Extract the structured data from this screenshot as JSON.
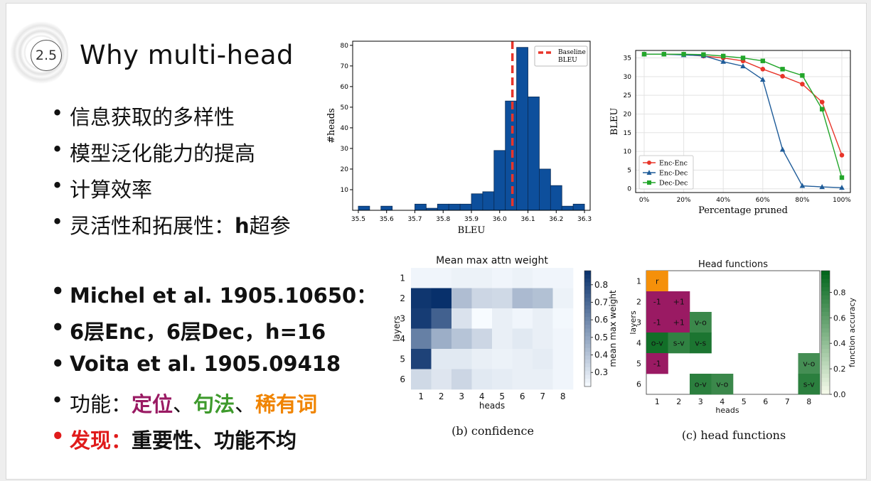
{
  "slide": {
    "section_number": "2.5",
    "title": "Why multi-head",
    "bullets_top": [
      "信息获取的多样性",
      "模型泛化能力的提高",
      "计算效率"
    ],
    "bullet_flex_prefix": "灵活性和拓展性：",
    "bullet_flex_bold": "h",
    "bullet_flex_suffix": "超参",
    "bullets_bottom": {
      "michel": "Michel et al. 1905.10650：",
      "config": "6层Enc，6层Dec，h=16",
      "voita": "Voita et al. 1905.09418",
      "func_prefix": "功能：",
      "func_positional": "定位",
      "func_sep1": "、",
      "func_syntactic": "句法",
      "func_sep2": "、",
      "func_rare": "稀有词",
      "finding_label": "发现：",
      "finding_text": "重要性、功能不均"
    }
  },
  "chart_data": [
    {
      "type": "bar",
      "xlabel": "BLEU",
      "ylabel": "#heads",
      "xlim": [
        35.48,
        36.32
      ],
      "ylim": [
        0,
        82
      ],
      "xticks": [
        "35.5",
        "35.6",
        "35.7",
        "35.8",
        "35.9",
        "36.0",
        "36.1",
        "36.2",
        "36.3"
      ],
      "yticks": [
        "10",
        "20",
        "30",
        "40",
        "50",
        "60",
        "70",
        "80"
      ],
      "bin_width": 0.04,
      "bins": [
        {
          "x": 35.52,
          "count": 2
        },
        {
          "x": 35.6,
          "count": 2
        },
        {
          "x": 35.72,
          "count": 3
        },
        {
          "x": 35.76,
          "count": 1
        },
        {
          "x": 35.8,
          "count": 3
        },
        {
          "x": 35.84,
          "count": 3
        },
        {
          "x": 35.88,
          "count": 3
        },
        {
          "x": 35.92,
          "count": 8
        },
        {
          "x": 35.96,
          "count": 9
        },
        {
          "x": 36.0,
          "count": 29
        },
        {
          "x": 36.04,
          "count": 53
        },
        {
          "x": 36.08,
          "count": 79
        },
        {
          "x": 36.12,
          "count": 55
        },
        {
          "x": 36.16,
          "count": 20
        },
        {
          "x": 36.2,
          "count": 12
        },
        {
          "x": 36.24,
          "count": 2
        },
        {
          "x": 36.28,
          "count": 3
        }
      ],
      "baseline": 36.045,
      "legend": {
        "label_line1": "Baseline",
        "label_line2": "BLEU",
        "position": "top-right"
      },
      "colors": {
        "bar": "#0d4f9c",
        "baseline": "#e8352a"
      }
    },
    {
      "type": "line",
      "xlabel": "Percentage pruned",
      "ylabel": "BLEU",
      "x": [
        0,
        10,
        20,
        30,
        40,
        50,
        60,
        70,
        80,
        90,
        100
      ],
      "xticks": [
        "0%",
        "20%",
        "40%",
        "60%",
        "80%",
        "100%"
      ],
      "yticks": [
        "0",
        "5",
        "10",
        "15",
        "20",
        "25",
        "30",
        "35"
      ],
      "ylim": [
        -1,
        37
      ],
      "grid": true,
      "legend_position": "bottom-left",
      "series": [
        {
          "name": "Enc-Enc",
          "marker": "circle",
          "color": "#e8352a",
          "values": [
            36.0,
            36.0,
            35.9,
            35.5,
            35.0,
            34.2,
            32.0,
            30.1,
            28.0,
            23.2,
            9.0
          ]
        },
        {
          "name": "Enc-Dec",
          "marker": "triangle",
          "color": "#1f5c99",
          "values": [
            36.0,
            36.0,
            35.8,
            35.6,
            34.0,
            32.8,
            29.2,
            10.5,
            0.8,
            0.5,
            0.3
          ]
        },
        {
          "name": "Dec-Dec",
          "marker": "square",
          "color": "#22a62a",
          "values": [
            36.0,
            36.0,
            36.0,
            35.9,
            35.5,
            35.0,
            34.2,
            32.0,
            30.3,
            21.3,
            3.0
          ]
        }
      ]
    },
    {
      "type": "heatmap",
      "title": "Mean max attn weight",
      "xlabel": "heads",
      "ylabel": "layers",
      "x": [
        "1",
        "2",
        "3",
        "4",
        "5",
        "6",
        "7",
        "8"
      ],
      "y": [
        "1",
        "2",
        "3",
        "4",
        "5",
        "6"
      ],
      "values": [
        [
          0.24,
          0.24,
          0.25,
          0.25,
          0.24,
          0.25,
          0.24,
          0.24
        ],
        [
          0.86,
          0.88,
          0.42,
          0.34,
          0.33,
          0.43,
          0.41,
          0.25
        ],
        [
          0.84,
          0.72,
          0.3,
          0.2,
          0.26,
          0.24,
          0.26,
          0.23
        ],
        [
          0.62,
          0.47,
          0.4,
          0.34,
          0.26,
          0.28,
          0.26,
          0.24
        ],
        [
          0.82,
          0.28,
          0.28,
          0.26,
          0.25,
          0.26,
          0.27,
          0.24
        ],
        [
          0.33,
          0.29,
          0.34,
          0.28,
          0.27,
          0.26,
          0.26,
          0.24
        ]
      ],
      "colorbar": {
        "label": "mean max weight",
        "ticks": [
          "0.3",
          "0.4",
          "0.5",
          "0.6",
          "0.7",
          "0.8"
        ],
        "range": [
          0.22,
          0.88
        ]
      },
      "caption": "(b) confidence"
    },
    {
      "type": "heatmap",
      "title": "Head functions",
      "xlabel": "heads",
      "ylabel": "layers",
      "x": [
        "1",
        "2",
        "3",
        "4",
        "5",
        "6",
        "7",
        "8"
      ],
      "y": [
        "1",
        "2",
        "3",
        "4",
        "5",
        "6"
      ],
      "cells": [
        {
          "layer": 1,
          "head": 1,
          "label": "r",
          "kind": "rare"
        },
        {
          "layer": 2,
          "head": 1,
          "label": "-1",
          "kind": "positional"
        },
        {
          "layer": 2,
          "head": 2,
          "label": "+1",
          "kind": "positional"
        },
        {
          "layer": 3,
          "head": 1,
          "label": "-1",
          "kind": "positional"
        },
        {
          "layer": 3,
          "head": 2,
          "label": "+1",
          "kind": "positional"
        },
        {
          "layer": 3,
          "head": 3,
          "label": "v-o",
          "kind": "syntactic",
          "accuracy": 0.74
        },
        {
          "layer": 4,
          "head": 1,
          "label": "o-v",
          "kind": "syntactic",
          "accuracy": 0.9
        },
        {
          "layer": 4,
          "head": 2,
          "label": "s-v",
          "kind": "syntactic",
          "accuracy": 0.78
        },
        {
          "layer": 4,
          "head": 3,
          "label": "v-s",
          "kind": "syntactic",
          "accuracy": 0.86
        },
        {
          "layer": 5,
          "head": 1,
          "label": "-1",
          "kind": "positional"
        },
        {
          "layer": 5,
          "head": 8,
          "label": "v-o",
          "kind": "syntactic",
          "accuracy": 0.7
        },
        {
          "layer": 6,
          "head": 3,
          "label": "o-v",
          "kind": "syntactic",
          "accuracy": 0.8
        },
        {
          "layer": 6,
          "head": 4,
          "label": "v-o",
          "kind": "syntactic",
          "accuracy": 0.74
        },
        {
          "layer": 6,
          "head": 8,
          "label": "s-v",
          "kind": "syntactic",
          "accuracy": 0.8
        }
      ],
      "colorbar": {
        "label": "function accuracy",
        "ticks": [
          "0.0",
          "0.2",
          "0.4",
          "0.6",
          "0.8"
        ],
        "range": [
          0,
          0.97
        ]
      },
      "colors": {
        "rare": "#f5900a",
        "positional": "#9a1a63"
      },
      "caption": "(c) head functions"
    }
  ]
}
